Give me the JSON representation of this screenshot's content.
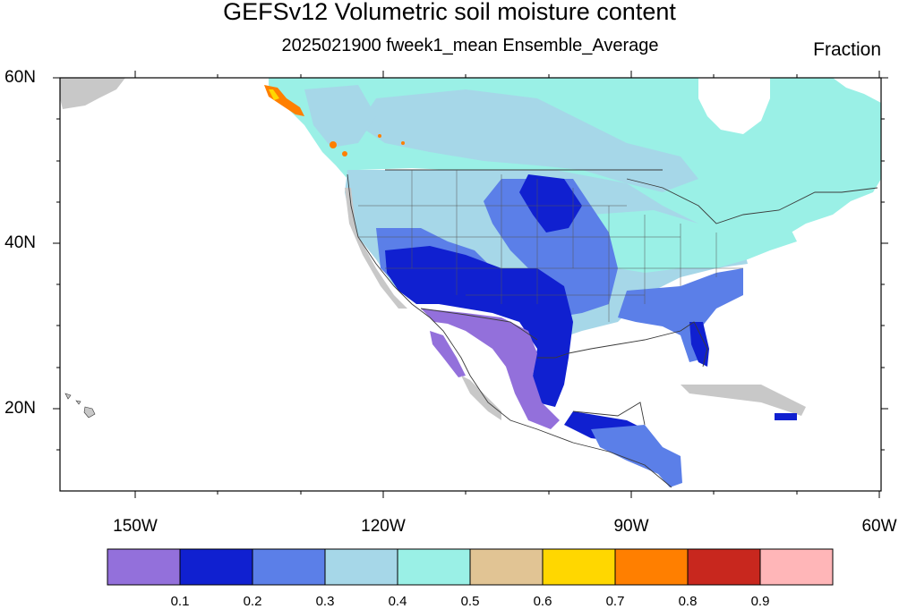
{
  "title": "GEFSv12 Volumetric soil moisture content",
  "subtitle": "2025021900 fweek1_mean Ensemble_Average",
  "units": "Fraction",
  "y_ticks": [
    "60N",
    "40N",
    "20N"
  ],
  "x_ticks": [
    "150W",
    "120W",
    "90W",
    "60W"
  ],
  "colorbar": {
    "labels": [
      "0.1",
      "0.2",
      "0.3",
      "0.4",
      "0.5",
      "0.6",
      "0.7",
      "0.8",
      "0.9"
    ],
    "colors": [
      "#9370DB",
      "#1020D0",
      "#5B7FE8",
      "#A6D7E8",
      "#9AF0E6",
      "#E1C494",
      "#FFD700",
      "#FF7F00",
      "#C8271E",
      "#FFB6B8"
    ]
  },
  "colors": {
    "missing": "#C8C8C8",
    "land_border": "#3a3a3a",
    "background": "#FFFFFF"
  }
}
